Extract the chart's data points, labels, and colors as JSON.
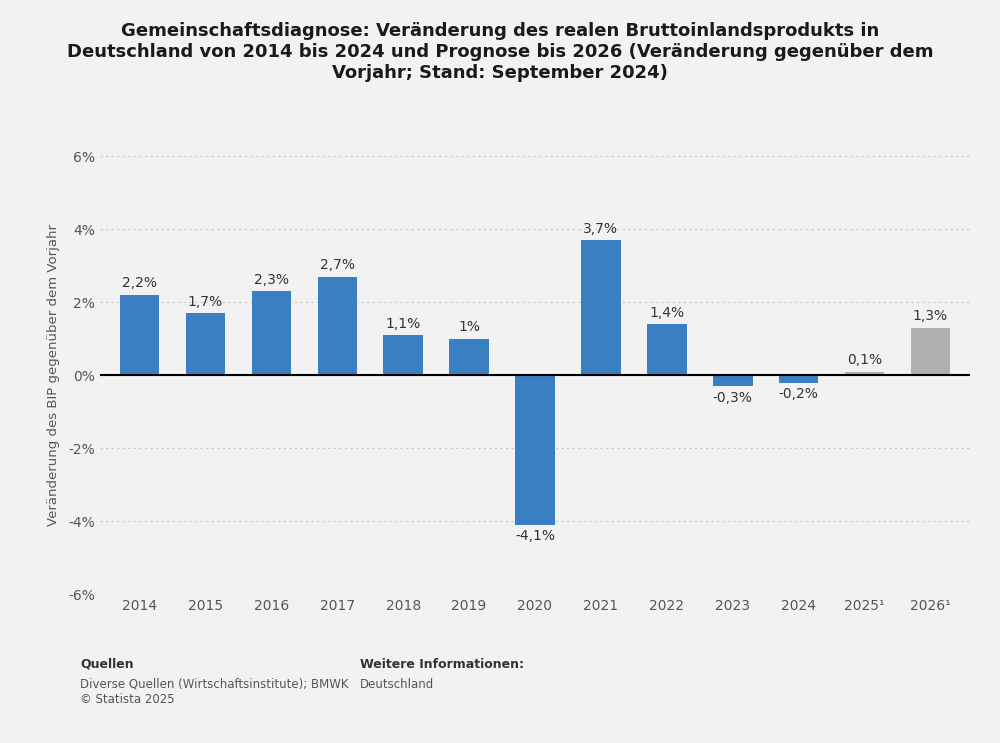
{
  "title": "Gemeinschaftsdiagnose: Veränderung des realen Bruttoinlandsprodukts in\nDeutschland von 2014 bis 2024 und Prognose bis 2026 (Veränderung gegenüber dem\nVorjahr; Stand: September 2024)",
  "ylabel": "Veränderung des BIP gegenüber dem Vorjahr",
  "categories": [
    "2014",
    "2015",
    "2016",
    "2017",
    "2018",
    "2019",
    "2020",
    "2021",
    "2022",
    "2023",
    "2024",
    "2025¹",
    "2026¹"
  ],
  "values": [
    2.2,
    1.7,
    2.3,
    2.7,
    1.1,
    1.0,
    -4.1,
    3.7,
    1.4,
    -0.3,
    -0.2,
    0.1,
    1.3
  ],
  "bar_colors": [
    "#3a7fc1",
    "#3a7fc1",
    "#3a7fc1",
    "#3a7fc1",
    "#3a7fc1",
    "#3a7fc1",
    "#3a7fc1",
    "#3a7fc1",
    "#3a7fc1",
    "#3a7fc1",
    "#3a7fc1",
    "#b0b0b0",
    "#b0b0b0"
  ],
  "value_labels": [
    "2,2%",
    "1,7%",
    "2,3%",
    "2,7%",
    "1,1%",
    "1%",
    "-4,1%",
    "3,7%",
    "1,4%",
    "-0,3%",
    "-0,2%",
    "0,1%",
    "1,3%"
  ],
  "ylim": [
    -6,
    6
  ],
  "yticks": [
    -6,
    -4,
    -2,
    0,
    2,
    4,
    6
  ],
  "ytick_labels": [
    "-6%",
    "-4%",
    "-2%",
    "0%",
    "2%",
    "4%",
    "6%"
  ],
  "background_color": "#f2f2f2",
  "plot_bg_color": "#f2f2f2",
  "grid_color": "#cccccc",
  "bar_width": 0.6,
  "title_fontsize": 13,
  "ylabel_fontsize": 9.5,
  "tick_fontsize": 10,
  "label_fontsize": 10,
  "source_bold": "Quellen",
  "source_rest": "Diverse Quellen (Wirtschaftsinstitute); BMWK\n© Statista 2025",
  "more_info_label": "Weitere Informationen:",
  "more_info_value": "Deutschland"
}
